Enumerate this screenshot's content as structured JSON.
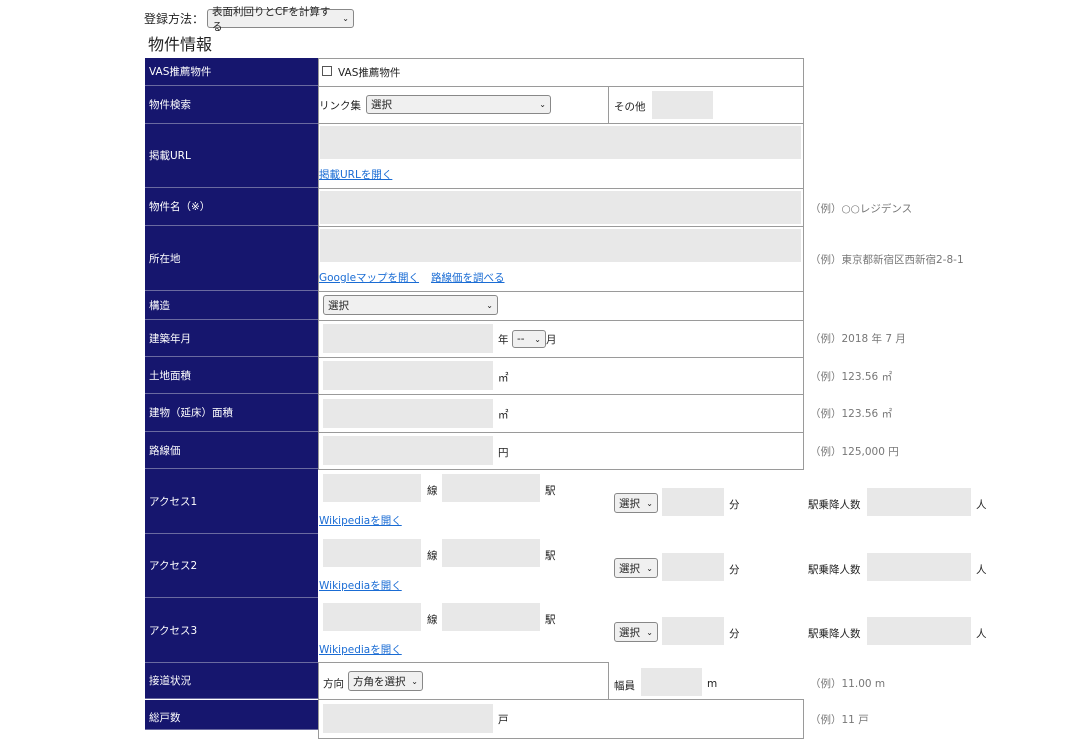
{
  "header": {
    "method_label": "登録方法：",
    "method_value": "表面利回りとCFを計算する",
    "section_title": "物件情報"
  },
  "rows": {
    "vas": {
      "label": "VAS推薦物件",
      "checkbox_label": "VAS推薦物件",
      "checked": false
    },
    "search": {
      "label": "物件検索",
      "links_label": "リンク集",
      "links_value": "選択",
      "other_label": "その他"
    },
    "url": {
      "label": "掲載URL",
      "open_link": "掲載URLを開く"
    },
    "name": {
      "label": "物件名（※）",
      "hint": "（例）○○レジデンス"
    },
    "address": {
      "label": "所在地",
      "map_link": "Googleマップを開く",
      "rosenka_link": "路線価を調べる",
      "hint": "（例）東京都新宿区西新宿2-8-1"
    },
    "structure": {
      "label": "構造",
      "value": "選択"
    },
    "built": {
      "label": "建築年月",
      "year_unit": "年",
      "month_value": "--",
      "month_unit": "月",
      "hint": "（例）2018 年 7 月"
    },
    "land": {
      "label": "土地面積",
      "unit": "㎡",
      "hint": "（例）123.56 ㎡"
    },
    "building": {
      "label": "建物（延床）面積",
      "unit": "㎡",
      "hint": "（例）123.56 ㎡"
    },
    "rosenka": {
      "label": "路線価",
      "unit": "円",
      "hint": "（例）125,000 円"
    },
    "access": [
      {
        "label": "アクセス1",
        "line_unit": "線",
        "station_unit": "駅",
        "wiki_link": "Wikipediaを開く",
        "mode_value": "選択",
        "min_unit": "分",
        "passengers_label": "駅乗降人数",
        "passengers_unit": "人"
      },
      {
        "label": "アクセス2",
        "line_unit": "線",
        "station_unit": "駅",
        "wiki_link": "Wikipediaを開く",
        "mode_value": "選択",
        "min_unit": "分",
        "passengers_label": "駅乗降人数",
        "passengers_unit": "人"
      },
      {
        "label": "アクセス3",
        "line_unit": "線",
        "station_unit": "駅",
        "wiki_link": "Wikipediaを開く",
        "mode_value": "選択",
        "min_unit": "分",
        "passengers_label": "駅乗降人数",
        "passengers_unit": "人"
      }
    ],
    "road": {
      "label": "接道状況",
      "direction_label": "方向",
      "direction_value": "方角を選択",
      "width_label": "幅員",
      "width_unit": "m",
      "hint": "（例）11.00 m"
    },
    "units": {
      "label": "総戸数",
      "unit": "戸",
      "hint": "（例）11 戸"
    }
  },
  "colors": {
    "label_bg": "#16166e",
    "input_bg": "#e8e8e8",
    "link": "#1a6cd4"
  }
}
